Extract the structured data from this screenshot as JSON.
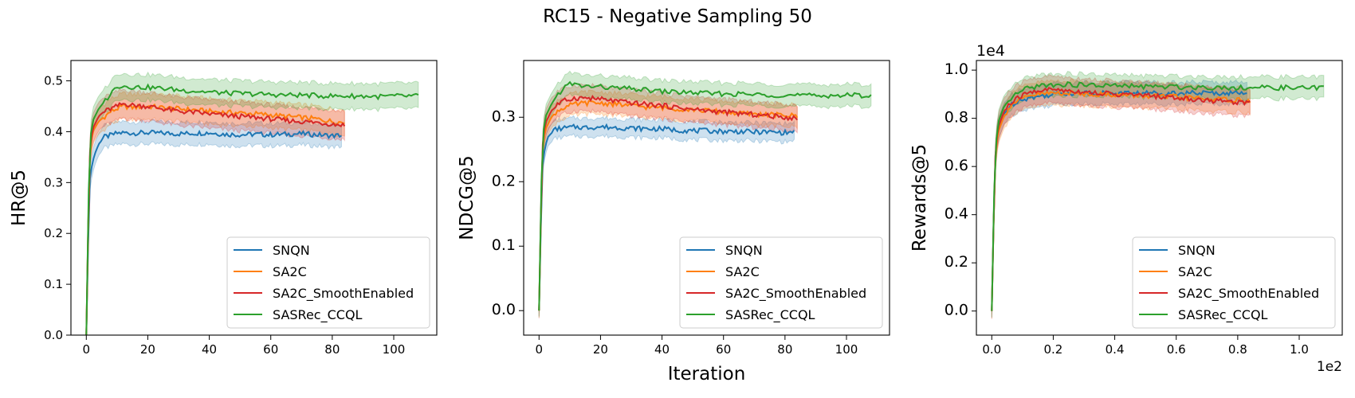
{
  "figure": {
    "title": "RC15 - Negative Sampling 50",
    "colors": {
      "SNQN": "#1f77b4",
      "SA2C": "#ff7f0e",
      "SA2C_SmoothEnabled": "#d62728",
      "SASRec_CCQL": "#2ca02c"
    }
  },
  "chart_data": [
    {
      "type": "line",
      "id": "hr",
      "title": "",
      "xlabel": "",
      "ylabel": "HR@5",
      "xlim": [
        -5,
        114
      ],
      "ylim": [
        0.0,
        0.54
      ],
      "xticks": [
        0,
        20,
        40,
        60,
        80,
        100
      ],
      "xtick_labels": [
        "0",
        "20",
        "40",
        "60",
        "80",
        "100"
      ],
      "yticks": [
        0.0,
        0.1,
        0.2,
        0.3,
        0.4,
        0.5
      ],
      "ytick_labels": [
        "0.0",
        "0.1",
        "0.2",
        "0.3",
        "0.4",
        "0.5"
      ],
      "x_offset_label": "",
      "y_offset_label": "",
      "legend": "lower right",
      "series": [
        {
          "name": "SNQN",
          "band": 0.022,
          "x": [
            0,
            1,
            2,
            3,
            4,
            5,
            6,
            8,
            10,
            12,
            15,
            20,
            25,
            30,
            35,
            40,
            45,
            50,
            55,
            60,
            65,
            70,
            75,
            80,
            83
          ],
          "values": [
            0.0,
            0.3,
            0.34,
            0.36,
            0.375,
            0.385,
            0.39,
            0.393,
            0.397,
            0.398,
            0.397,
            0.398,
            0.397,
            0.396,
            0.397,
            0.398,
            0.395,
            0.394,
            0.395,
            0.394,
            0.395,
            0.396,
            0.394,
            0.392,
            0.393
          ]
        },
        {
          "name": "SA2C",
          "band": 0.025,
          "x": [
            0,
            1,
            2,
            4,
            6,
            8,
            10,
            12,
            15,
            20,
            25,
            30,
            35,
            40,
            45,
            50,
            55,
            60,
            65,
            70,
            75,
            80,
            84
          ],
          "values": [
            0.0,
            0.34,
            0.4,
            0.42,
            0.43,
            0.44,
            0.445,
            0.45,
            0.448,
            0.45,
            0.447,
            0.445,
            0.443,
            0.44,
            0.438,
            0.437,
            0.435,
            0.433,
            0.43,
            0.428,
            0.425,
            0.42,
            0.418
          ]
        },
        {
          "name": "SA2C_SmoothEnabled",
          "band": 0.028,
          "x": [
            0,
            1,
            2,
            4,
            6,
            8,
            10,
            12,
            15,
            20,
            25,
            30,
            35,
            40,
            45,
            50,
            55,
            60,
            65,
            70,
            75,
            80,
            84
          ],
          "values": [
            0.0,
            0.35,
            0.405,
            0.43,
            0.44,
            0.445,
            0.45,
            0.455,
            0.452,
            0.45,
            0.445,
            0.44,
            0.438,
            0.435,
            0.432,
            0.43,
            0.428,
            0.425,
            0.422,
            0.42,
            0.418,
            0.415,
            0.413
          ]
        },
        {
          "name": "SASRec_CCQL",
          "band": 0.025,
          "x": [
            0,
            1,
            2,
            4,
            6,
            8,
            10,
            12,
            15,
            20,
            25,
            30,
            35,
            40,
            45,
            50,
            55,
            60,
            65,
            70,
            75,
            80,
            85,
            90,
            95,
            100,
            104,
            108
          ],
          "values": [
            0.0,
            0.37,
            0.42,
            0.445,
            0.46,
            0.475,
            0.49,
            0.49,
            0.488,
            0.487,
            0.485,
            0.482,
            0.48,
            0.478,
            0.476,
            0.475,
            0.474,
            0.473,
            0.472,
            0.472,
            0.471,
            0.47,
            0.47,
            0.47,
            0.469,
            0.47,
            0.47,
            0.47
          ]
        }
      ]
    },
    {
      "type": "line",
      "id": "ndcg",
      "title": "",
      "xlabel": "Iteration",
      "ylabel": "NDCG@5",
      "xlim": [
        -5,
        114
      ],
      "ylim": [
        -0.038,
        0.388
      ],
      "xticks": [
        0,
        20,
        40,
        60,
        80,
        100
      ],
      "xtick_labels": [
        "0",
        "20",
        "40",
        "60",
        "80",
        "100"
      ],
      "yticks": [
        0.0,
        0.1,
        0.2,
        0.3
      ],
      "ytick_labels": [
        "0.0",
        "0.1",
        "0.2",
        "0.3"
      ],
      "x_offset_label": "",
      "y_offset_label": "",
      "legend": "lower right",
      "series": [
        {
          "name": "SNQN",
          "band": 0.014,
          "x": [
            0,
            1,
            2,
            3,
            4,
            5,
            6,
            8,
            10,
            12,
            15,
            20,
            25,
            30,
            35,
            40,
            45,
            50,
            55,
            60,
            65,
            70,
            75,
            80,
            83
          ],
          "values": [
            0.0,
            0.22,
            0.255,
            0.27,
            0.275,
            0.28,
            0.282,
            0.283,
            0.284,
            0.285,
            0.284,
            0.285,
            0.284,
            0.283,
            0.282,
            0.282,
            0.28,
            0.279,
            0.279,
            0.278,
            0.278,
            0.277,
            0.277,
            0.276,
            0.277
          ]
        },
        {
          "name": "SA2C",
          "band": 0.017,
          "x": [
            0,
            1,
            2,
            4,
            6,
            8,
            10,
            12,
            15,
            20,
            25,
            30,
            35,
            40,
            45,
            50,
            55,
            60,
            65,
            70,
            75,
            80,
            84
          ],
          "values": [
            0.0,
            0.24,
            0.28,
            0.3,
            0.31,
            0.315,
            0.318,
            0.32,
            0.322,
            0.322,
            0.32,
            0.318,
            0.316,
            0.315,
            0.313,
            0.312,
            0.31,
            0.308,
            0.306,
            0.305,
            0.304,
            0.303,
            0.302
          ]
        },
        {
          "name": "SA2C_SmoothEnabled",
          "band": 0.02,
          "x": [
            0,
            1,
            2,
            4,
            6,
            8,
            10,
            12,
            15,
            20,
            25,
            30,
            35,
            40,
            45,
            50,
            55,
            60,
            65,
            70,
            75,
            80,
            84
          ],
          "values": [
            0.0,
            0.25,
            0.29,
            0.31,
            0.32,
            0.325,
            0.328,
            0.33,
            0.33,
            0.328,
            0.325,
            0.322,
            0.32,
            0.318,
            0.315,
            0.312,
            0.31,
            0.308,
            0.306,
            0.304,
            0.302,
            0.3,
            0.298
          ]
        },
        {
          "name": "SASRec_CCQL",
          "band": 0.017,
          "x": [
            0,
            1,
            2,
            4,
            6,
            8,
            10,
            12,
            15,
            20,
            25,
            30,
            35,
            40,
            45,
            50,
            55,
            60,
            65,
            70,
            75,
            80,
            85,
            90,
            95,
            100,
            104,
            108
          ],
          "values": [
            0.0,
            0.26,
            0.3,
            0.32,
            0.335,
            0.345,
            0.352,
            0.35,
            0.348,
            0.347,
            0.345,
            0.344,
            0.342,
            0.34,
            0.339,
            0.338,
            0.337,
            0.336,
            0.336,
            0.335,
            0.335,
            0.334,
            0.334,
            0.333,
            0.334,
            0.334,
            0.334,
            0.334
          ]
        }
      ]
    },
    {
      "type": "line",
      "id": "rewards",
      "title": "",
      "xlabel": "",
      "ylabel": "Rewards@5",
      "xlim": [
        -0.05,
        1.14
      ],
      "ylim": [
        -0.1,
        1.04
      ],
      "xticks": [
        0.0,
        0.2,
        0.4,
        0.6,
        0.8,
        1.0
      ],
      "xtick_labels": [
        "0.0",
        "0.2",
        "0.4",
        "0.6",
        "0.8",
        "1.0"
      ],
      "yticks": [
        0.0,
        0.2,
        0.4,
        0.6,
        0.8,
        1.0
      ],
      "ytick_labels": [
        "0.0",
        "0.2",
        "0.4",
        "0.6",
        "0.8",
        "1.0"
      ],
      "x_offset_label": "1e2",
      "y_offset_label": "1e4",
      "legend": "lower right",
      "series": [
        {
          "name": "SNQN",
          "band": 0.045,
          "x": [
            0,
            0.01,
            0.02,
            0.04,
            0.06,
            0.08,
            0.1,
            0.12,
            0.15,
            0.2,
            0.25,
            0.3,
            0.35,
            0.4,
            0.45,
            0.5,
            0.55,
            0.6,
            0.65,
            0.7,
            0.75,
            0.8,
            0.83
          ],
          "values": [
            0.0,
            0.62,
            0.75,
            0.82,
            0.85,
            0.87,
            0.88,
            0.885,
            0.89,
            0.9,
            0.905,
            0.905,
            0.905,
            0.905,
            0.905,
            0.905,
            0.905,
            0.905,
            0.905,
            0.905,
            0.905,
            0.905,
            0.905
          ]
        },
        {
          "name": "SA2C",
          "band": 0.05,
          "x": [
            0,
            0.01,
            0.02,
            0.04,
            0.06,
            0.08,
            0.1,
            0.12,
            0.15,
            0.2,
            0.25,
            0.3,
            0.35,
            0.4,
            0.45,
            0.5,
            0.55,
            0.6,
            0.65,
            0.7,
            0.75,
            0.8,
            0.84
          ],
          "values": [
            0.0,
            0.6,
            0.74,
            0.81,
            0.85,
            0.87,
            0.88,
            0.89,
            0.9,
            0.905,
            0.905,
            0.902,
            0.9,
            0.898,
            0.895,
            0.893,
            0.89,
            0.888,
            0.885,
            0.88,
            0.878,
            0.875,
            0.873
          ]
        },
        {
          "name": "SA2C_SmoothEnabled",
          "band": 0.055,
          "x": [
            0,
            0.01,
            0.02,
            0.04,
            0.06,
            0.08,
            0.1,
            0.12,
            0.15,
            0.2,
            0.25,
            0.3,
            0.35,
            0.4,
            0.45,
            0.5,
            0.55,
            0.6,
            0.65,
            0.7,
            0.75,
            0.8,
            0.84
          ],
          "values": [
            0.0,
            0.62,
            0.76,
            0.83,
            0.86,
            0.88,
            0.895,
            0.905,
            0.915,
            0.92,
            0.915,
            0.91,
            0.905,
            0.9,
            0.898,
            0.895,
            0.89,
            0.885,
            0.88,
            0.875,
            0.87,
            0.868,
            0.865
          ]
        },
        {
          "name": "SASRec_CCQL",
          "band": 0.045,
          "x": [
            0,
            0.01,
            0.02,
            0.04,
            0.06,
            0.08,
            0.1,
            0.12,
            0.15,
            0.2,
            0.25,
            0.3,
            0.35,
            0.4,
            0.45,
            0.5,
            0.55,
            0.6,
            0.65,
            0.7,
            0.75,
            0.8,
            0.85,
            0.9,
            0.95,
            1.0,
            1.04,
            1.08
          ],
          "values": [
            0.0,
            0.64,
            0.78,
            0.85,
            0.88,
            0.9,
            0.915,
            0.925,
            0.935,
            0.94,
            0.94,
            0.938,
            0.936,
            0.935,
            0.933,
            0.932,
            0.931,
            0.93,
            0.93,
            0.929,
            0.928,
            0.928,
            0.927,
            0.927,
            0.927,
            0.926,
            0.926,
            0.926
          ]
        }
      ]
    }
  ]
}
